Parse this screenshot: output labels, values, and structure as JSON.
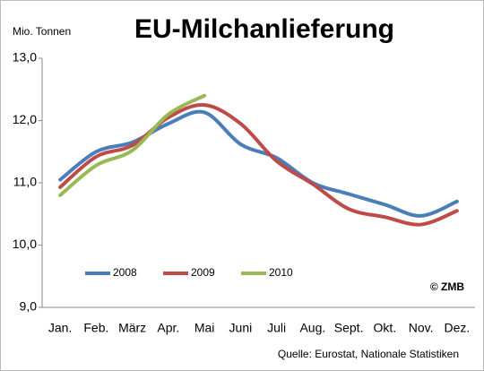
{
  "chart_data": {
    "type": "line",
    "title": "EU-Milchanlieferung",
    "y_label": "Mio. Tonnen",
    "annotations": [
      "© ZMB",
      "Quelle: Eurostat,  Nationale Statistiken"
    ],
    "categories": [
      "Jan.",
      "Feb.",
      "März",
      "Apr.",
      "Mai",
      "Juni",
      "Juli",
      "Aug.",
      "Sept.",
      "Okt.",
      "Nov.",
      "Dez."
    ],
    "series": [
      {
        "name": "2008",
        "color": "#4a7ebb",
        "values": [
          11.05,
          11.5,
          11.65,
          11.95,
          12.13,
          11.62,
          11.4,
          11.0,
          10.82,
          10.65,
          10.47,
          10.7
        ]
      },
      {
        "name": "2009",
        "color": "#be4b48",
        "values": [
          10.93,
          11.42,
          11.6,
          12.05,
          12.25,
          11.95,
          11.35,
          10.98,
          10.58,
          10.45,
          10.33,
          10.55
        ]
      },
      {
        "name": "2010",
        "color": "#98b954",
        "values": [
          10.8,
          11.28,
          11.52,
          12.1,
          12.4,
          null,
          null,
          null,
          null,
          null,
          null,
          null
        ]
      }
    ],
    "ylim": [
      9,
      13
    ],
    "yticks": [
      {
        "value": 9,
        "label": "9,0"
      },
      {
        "value": 10,
        "label": "10,0"
      },
      {
        "value": 11,
        "label": "11,0"
      },
      {
        "value": 12,
        "label": "12,0"
      },
      {
        "value": 13,
        "label": "13,0"
      }
    ],
    "grid": false,
    "legend": "lower left"
  }
}
